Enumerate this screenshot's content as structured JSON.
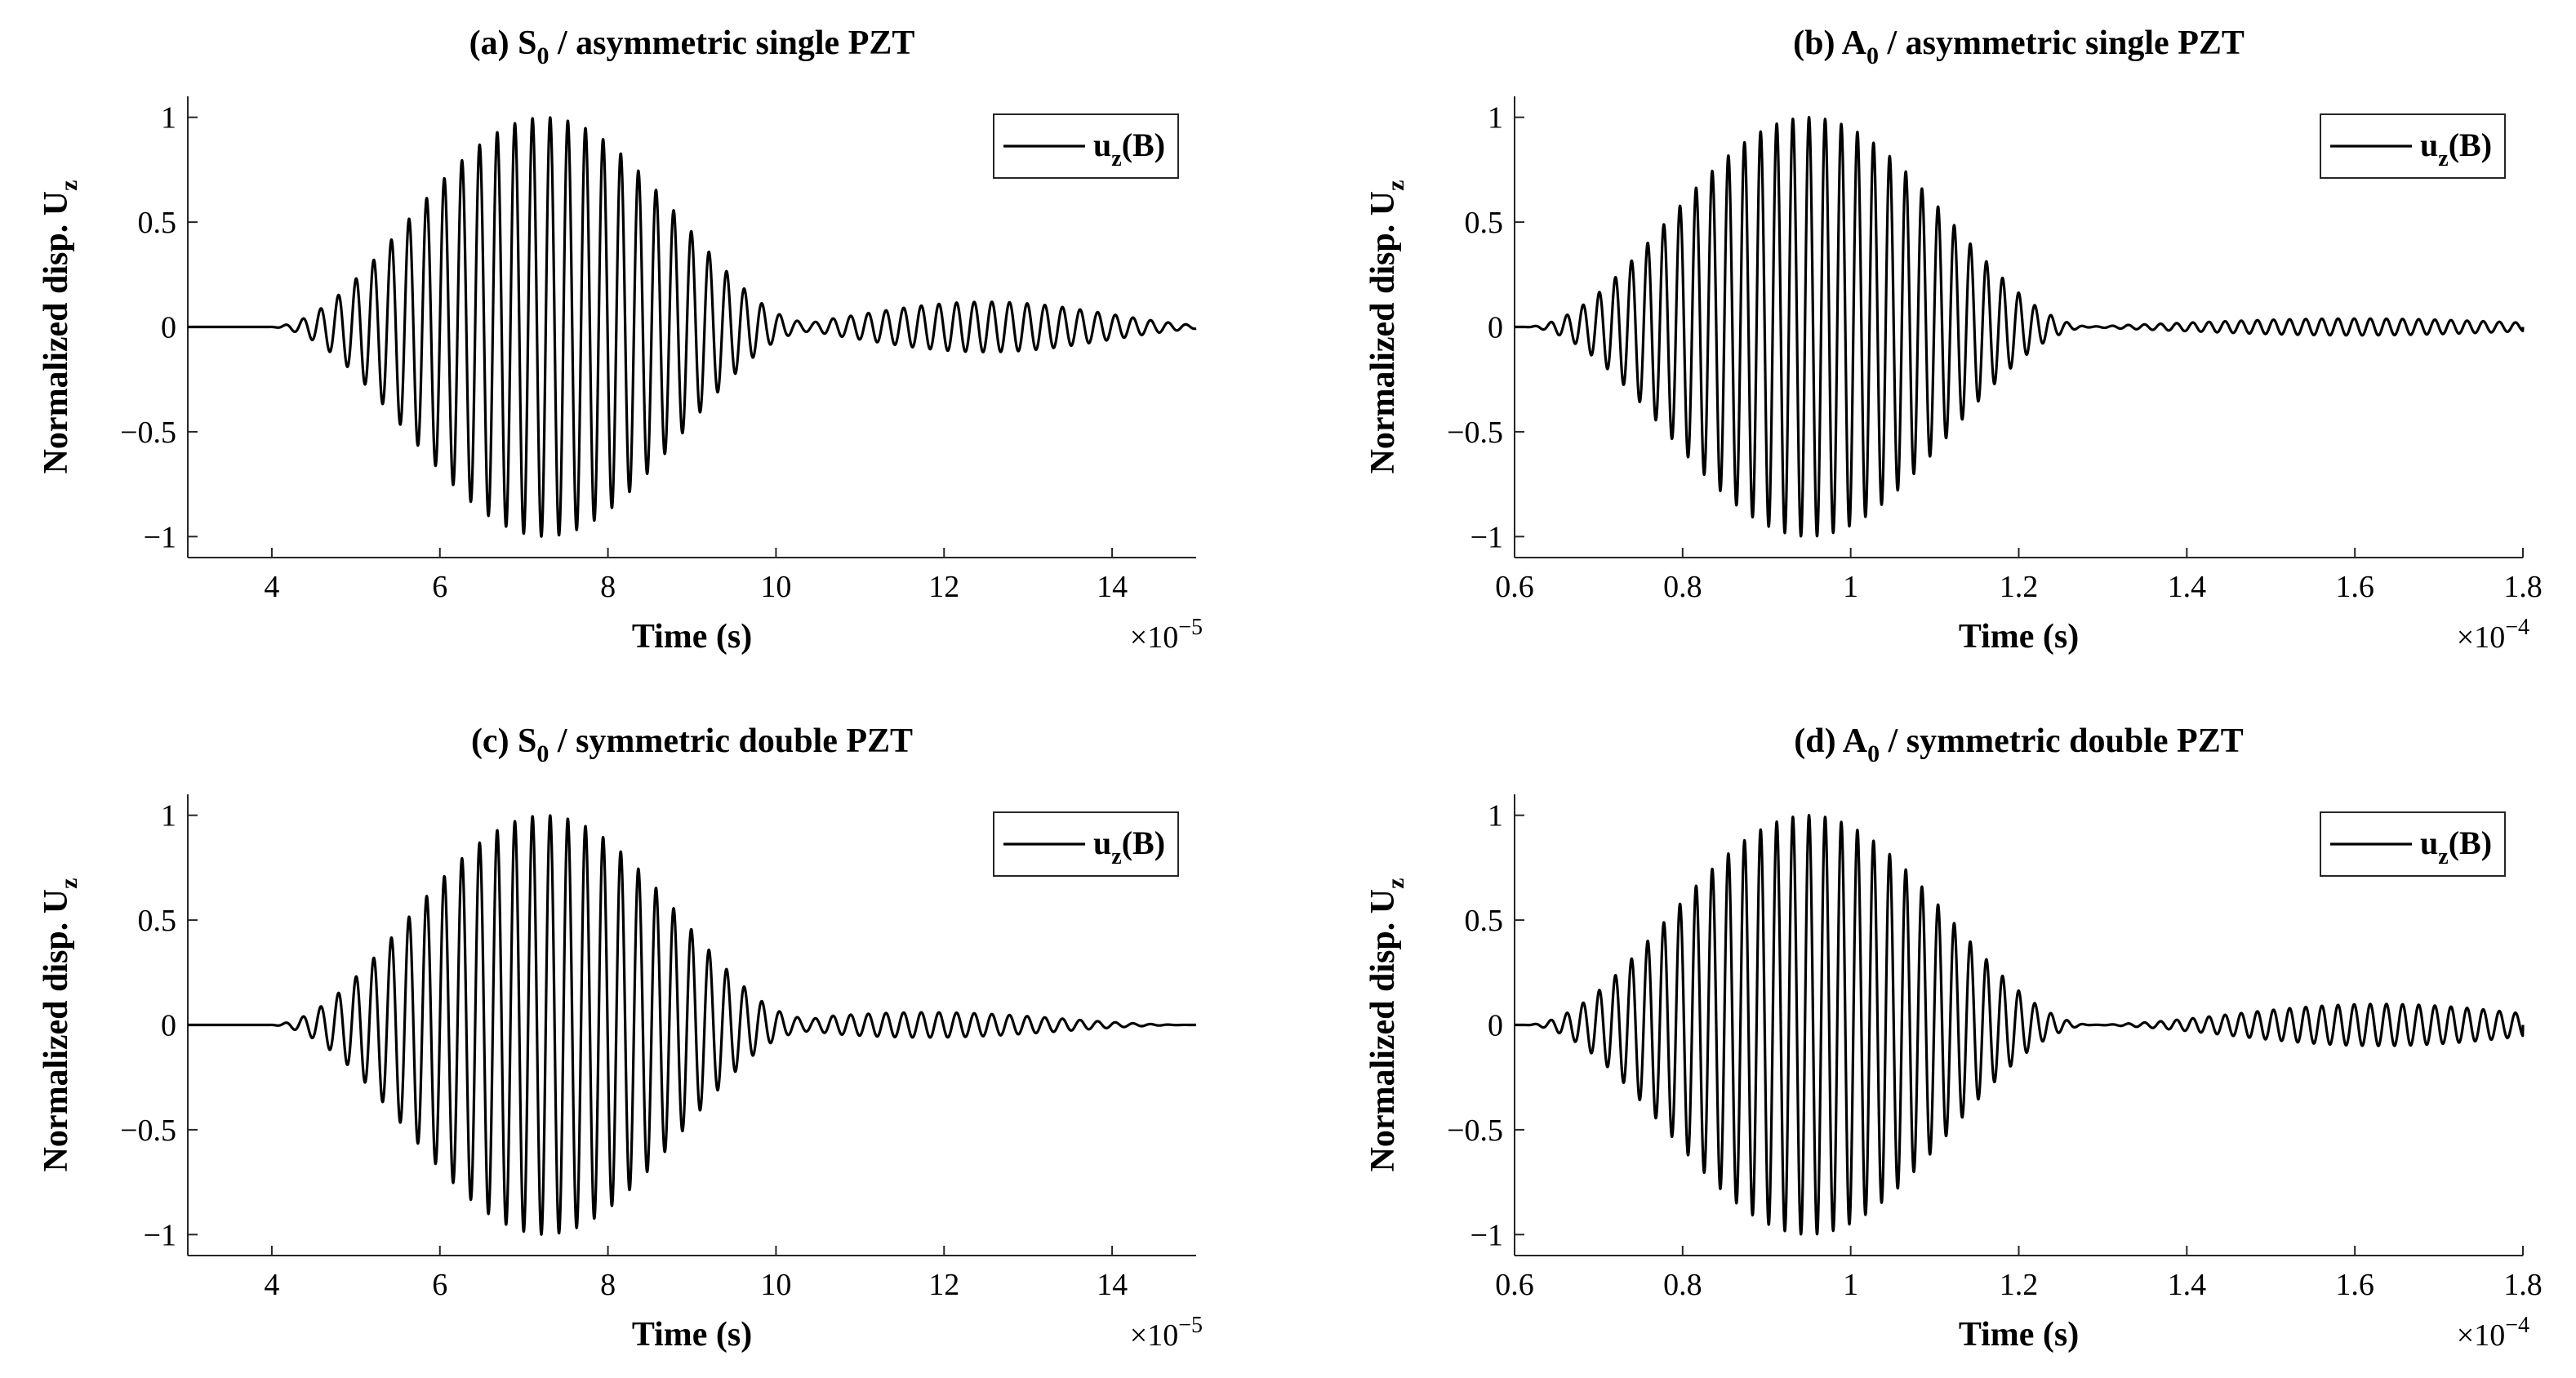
{
  "chart_data": [
    {
      "id": "a",
      "type": "line",
      "title": "(a) S",
      "title_sub": "0",
      "title_rest": " / asymmetric single PZT",
      "xlabel": "Time (s)",
      "ylabel": "Normalized disp. U",
      "ylabel_sub": "z",
      "xlim": [
        3,
        15
      ],
      "ylim": [
        -1.1,
        1.1
      ],
      "xticks": [
        4,
        6,
        8,
        10,
        12,
        14
      ],
      "xtick_labels": [
        "4",
        "6",
        "8",
        "10",
        "12",
        "14"
      ],
      "yticks": [
        -1,
        -0.5,
        0,
        0.5,
        1
      ],
      "ytick_labels": [
        "−1",
        "−0.5",
        "0",
        "0.5",
        "1"
      ],
      "x_multiplier": "×10",
      "x_multiplier_exp": "−5",
      "legend": {
        "label": "u",
        "label_sub": "z",
        "label_rest": "(B)",
        "placement": "top-right"
      },
      "series": [
        {
          "name": "u_z(B)",
          "color": "#000000",
          "signal": {
            "start": 3.9,
            "center": 7.25,
            "halfwidth": 3.3,
            "period": 0.21,
            "amplitude": 1.0,
            "tail_start": 9.8,
            "tail_end": 15,
            "tail_center": 12.5,
            "tail_halfwidth": 3.0,
            "tail_amplitude": 0.12,
            "tail_period": 0.21
          }
        }
      ]
    },
    {
      "id": "b",
      "type": "line",
      "title": "(b) A",
      "title_sub": "0",
      "title_rest": " / asymmetric single PZT",
      "xlabel": "Time (s)",
      "ylabel": "Normalized disp. U",
      "ylabel_sub": "z",
      "xlim": [
        0.6,
        1.8
      ],
      "ylim": [
        -1.1,
        1.1
      ],
      "xticks": [
        0.6,
        0.8,
        1.0,
        1.2,
        1.4,
        1.6,
        1.8
      ],
      "xtick_labels": [
        "0.6",
        "0.8",
        "1",
        "1.2",
        "1.4",
        "1.6",
        "1.8"
      ],
      "yticks": [
        -1,
        -0.5,
        0,
        0.5,
        1
      ],
      "ytick_labels": [
        "−1",
        "−0.5",
        "0",
        "0.5",
        "1"
      ],
      "x_multiplier": "×10",
      "x_multiplier_exp": "−4",
      "legend": {
        "label": "u",
        "label_sub": "z",
        "label_rest": "(B)",
        "placement": "top-right"
      },
      "series": [
        {
          "name": "u_z(B)",
          "color": "#000000",
          "signal": {
            "start": 0.6,
            "center": 0.95,
            "halfwidth": 0.34,
            "period": 0.0192,
            "amplitude": 1.0,
            "tail_start": 1.25,
            "tail_end": 1.8,
            "tail_center": 1.6,
            "tail_halfwidth": 0.4,
            "tail_amplitude": 0.04,
            "tail_period": 0.0192
          }
        }
      ]
    },
    {
      "id": "c",
      "type": "line",
      "title": "(c) S",
      "title_sub": "0",
      "title_rest": " / symmetric double PZT",
      "xlabel": "Time (s)",
      "ylabel": "Normalized disp. U",
      "ylabel_sub": "z",
      "xlim": [
        3,
        15
      ],
      "ylim": [
        -1.1,
        1.1
      ],
      "xticks": [
        4,
        6,
        8,
        10,
        12,
        14
      ],
      "xtick_labels": [
        "4",
        "6",
        "8",
        "10",
        "12",
        "14"
      ],
      "yticks": [
        -1,
        -0.5,
        0,
        0.5,
        1
      ],
      "ytick_labels": [
        "−1",
        "−0.5",
        "0",
        "0.5",
        "1"
      ],
      "x_multiplier": "×10",
      "x_multiplier_exp": "−5",
      "legend": {
        "label": "u",
        "label_sub": "z",
        "label_rest": "(B)",
        "placement": "top-right"
      },
      "series": [
        {
          "name": "u_z(B)",
          "color": "#000000",
          "signal": {
            "start": 3.9,
            "center": 7.25,
            "halfwidth": 3.3,
            "period": 0.21,
            "amplitude": 1.0,
            "tail_start": 9.8,
            "tail_end": 15,
            "tail_center": 11.8,
            "tail_halfwidth": 3.2,
            "tail_amplitude": 0.06,
            "tail_period": 0.21
          }
        }
      ]
    },
    {
      "id": "d",
      "type": "line",
      "title": "(d) A",
      "title_sub": "0",
      "title_rest": " / symmetric double PZT",
      "xlabel": "Time (s)",
      "ylabel": "Normalized disp. U",
      "ylabel_sub": "z",
      "xlim": [
        0.6,
        1.8
      ],
      "ylim": [
        -1.1,
        1.1
      ],
      "xticks": [
        0.6,
        0.8,
        1.0,
        1.2,
        1.4,
        1.6,
        1.8
      ],
      "xtick_labels": [
        "0.6",
        "0.8",
        "1",
        "1.2",
        "1.4",
        "1.6",
        "1.8"
      ],
      "yticks": [
        -1,
        -0.5,
        0,
        0.5,
        1
      ],
      "ytick_labels": [
        "−1",
        "−0.5",
        "0",
        "0.5",
        "1"
      ],
      "x_multiplier": "×10",
      "x_multiplier_exp": "−4",
      "legend": {
        "label": "u",
        "label_sub": "z",
        "label_rest": "(B)",
        "placement": "top-right"
      },
      "series": [
        {
          "name": "u_z(B)",
          "color": "#000000",
          "signal": {
            "start": 0.6,
            "center": 0.95,
            "halfwidth": 0.34,
            "period": 0.0192,
            "amplitude": 1.0,
            "tail_start": 1.25,
            "tail_end": 1.8,
            "tail_center": 1.63,
            "tail_halfwidth": 0.36,
            "tail_amplitude": 0.1,
            "tail_period": 0.0192
          }
        }
      ]
    }
  ]
}
